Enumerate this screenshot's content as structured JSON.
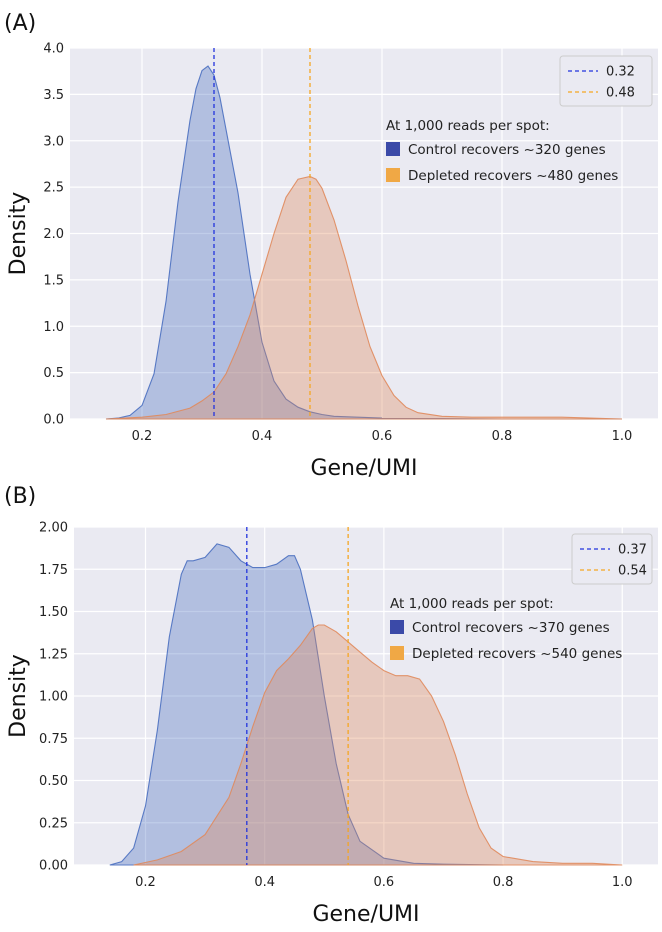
{
  "chart_data": [
    {
      "panel_label": "(A)",
      "type": "area",
      "xlabel": "Gene/UMI",
      "ylabel": "Density",
      "xlim": [
        0.08,
        1.06
      ],
      "ylim": [
        0,
        4.1
      ],
      "xticks": [
        "0.2",
        "0.4",
        "0.6",
        "0.8",
        "1.0"
      ],
      "yticks": [
        "0.0",
        "0.5",
        "1.0",
        "1.5",
        "2.0",
        "2.5",
        "3.0",
        "3.5",
        "4.0"
      ],
      "grid": true,
      "legend_position": "top-right",
      "series": [
        {
          "color": "#4a6fc0",
          "x": [
            0.14,
            0.16,
            0.18,
            0.2,
            0.22,
            0.24,
            0.26,
            0.28,
            0.29,
            0.3,
            0.31,
            0.32,
            0.33,
            0.34,
            0.36,
            0.38,
            0.4,
            0.42,
            0.44,
            0.46,
            0.48,
            0.5,
            0.52,
            0.56,
            0.6,
            0.7,
            0.8,
            1.0
          ],
          "values": [
            0,
            0.01,
            0.04,
            0.15,
            0.5,
            1.3,
            2.4,
            3.3,
            3.65,
            3.85,
            3.9,
            3.8,
            3.55,
            3.2,
            2.5,
            1.6,
            0.85,
            0.42,
            0.22,
            0.13,
            0.08,
            0.05,
            0.03,
            0.02,
            0.01,
            0.005,
            0.0,
            0.0
          ]
        },
        {
          "color": "#e08a5c",
          "x": [
            0.14,
            0.2,
            0.24,
            0.28,
            0.3,
            0.32,
            0.34,
            0.36,
            0.38,
            0.4,
            0.42,
            0.44,
            0.46,
            0.48,
            0.49,
            0.5,
            0.52,
            0.54,
            0.56,
            0.58,
            0.6,
            0.62,
            0.64,
            0.66,
            0.7,
            0.75,
            0.8,
            0.9,
            1.0
          ],
          "values": [
            0,
            0.02,
            0.05,
            0.12,
            0.2,
            0.3,
            0.5,
            0.8,
            1.15,
            1.6,
            2.05,
            2.45,
            2.65,
            2.68,
            2.65,
            2.55,
            2.2,
            1.75,
            1.25,
            0.8,
            0.48,
            0.26,
            0.13,
            0.07,
            0.03,
            0.02,
            0.02,
            0.02,
            0.0
          ]
        }
      ],
      "vlines": [
        {
          "x": 0.32,
          "label": "0.32",
          "color": "#2233dd"
        },
        {
          "x": 0.48,
          "label": "0.48",
          "color": "#f5a623"
        }
      ],
      "annotation": {
        "heading": "At 1,000 reads per spot:",
        "items": [
          {
            "text": "Control recovers ~320 genes",
            "color": "#3b4aa8"
          },
          {
            "text": "Depleted recovers ~480 genes",
            "color": "#f0a845"
          }
        ]
      }
    },
    {
      "panel_label": "(B)",
      "type": "area",
      "xlabel": "Gene/UMI",
      "ylabel": "Density",
      "xlim": [
        0.08,
        1.06
      ],
      "ylim": [
        0,
        2.0
      ],
      "xticks": [
        "0.2",
        "0.4",
        "0.6",
        "0.8",
        "1.0"
      ],
      "yticks": [
        "0.00",
        "0.25",
        "0.50",
        "0.75",
        "1.00",
        "1.25",
        "1.50",
        "1.75",
        "2.00"
      ],
      "grid": true,
      "legend_position": "top-right",
      "series": [
        {
          "color": "#4a6fc0",
          "x": [
            0.14,
            0.16,
            0.18,
            0.2,
            0.22,
            0.24,
            0.26,
            0.27,
            0.28,
            0.3,
            0.32,
            0.34,
            0.36,
            0.38,
            0.4,
            0.42,
            0.44,
            0.45,
            0.46,
            0.48,
            0.5,
            0.52,
            0.54,
            0.56,
            0.6,
            0.65,
            0.7,
            0.8
          ],
          "values": [
            0,
            0.02,
            0.1,
            0.35,
            0.8,
            1.35,
            1.72,
            1.8,
            1.8,
            1.82,
            1.9,
            1.88,
            1.8,
            1.76,
            1.76,
            1.78,
            1.83,
            1.83,
            1.75,
            1.45,
            1.0,
            0.6,
            0.3,
            0.14,
            0.04,
            0.01,
            0.005,
            0.0
          ]
        },
        {
          "color": "#e08a5c",
          "x": [
            0.18,
            0.22,
            0.26,
            0.3,
            0.34,
            0.36,
            0.38,
            0.4,
            0.42,
            0.44,
            0.46,
            0.48,
            0.49,
            0.5,
            0.52,
            0.54,
            0.56,
            0.58,
            0.6,
            0.62,
            0.64,
            0.66,
            0.68,
            0.7,
            0.72,
            0.74,
            0.76,
            0.78,
            0.8,
            0.85,
            0.9,
            0.95,
            1.0
          ],
          "values": [
            0,
            0.03,
            0.08,
            0.18,
            0.4,
            0.6,
            0.82,
            1.02,
            1.15,
            1.22,
            1.3,
            1.4,
            1.42,
            1.42,
            1.38,
            1.32,
            1.26,
            1.2,
            1.15,
            1.12,
            1.12,
            1.1,
            1.0,
            0.85,
            0.65,
            0.42,
            0.22,
            0.1,
            0.05,
            0.02,
            0.01,
            0.01,
            0.0
          ]
        }
      ],
      "vlines": [
        {
          "x": 0.37,
          "label": "0.37",
          "color": "#2233dd"
        },
        {
          "x": 0.54,
          "label": "0.54",
          "color": "#f5a623"
        }
      ],
      "annotation": {
        "heading": "At 1,000 reads per spot:",
        "items": [
          {
            "text": "Control recovers ~370 genes",
            "color": "#3b4aa8"
          },
          {
            "text": "Depleted recovers ~540 genes",
            "color": "#f0a845"
          }
        ]
      }
    }
  ]
}
